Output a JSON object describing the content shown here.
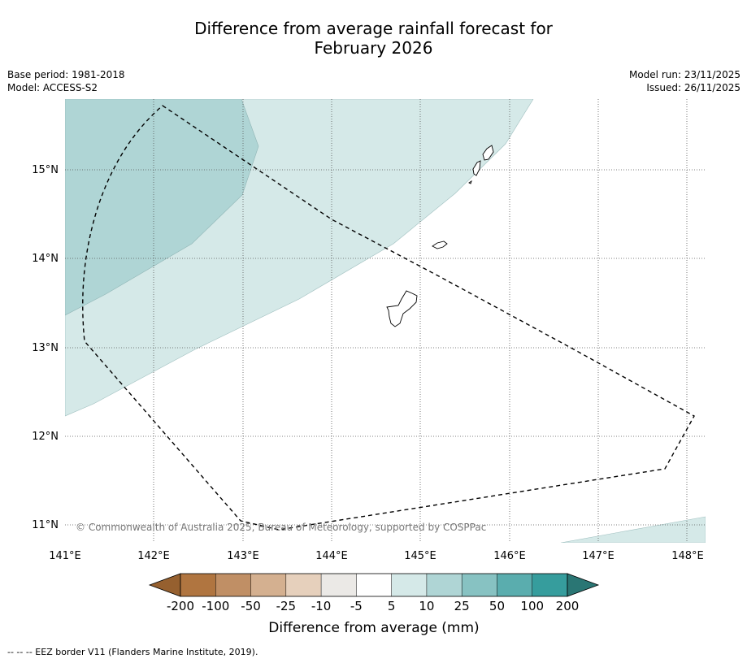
{
  "title": {
    "line1": "Difference from average rainfall forecast for",
    "line2": "February 2026"
  },
  "meta": {
    "base_period": "Base period: 1981-2018",
    "model": "Model: ACCESS-S2",
    "model_run": "Model run: 23/11/2025",
    "issued": "Issued: 26/11/2025"
  },
  "map": {
    "lat_ticks": [
      {
        "value": 15,
        "label": "15°N"
      },
      {
        "value": 14,
        "label": "14°N"
      },
      {
        "value": 13,
        "label": "13°N"
      },
      {
        "value": 12,
        "label": "12°N"
      },
      {
        "value": 11,
        "label": "11°N"
      }
    ],
    "lon_ticks": [
      {
        "value": 141,
        "label": "141°E"
      },
      {
        "value": 142,
        "label": "142°E"
      },
      {
        "value": 143,
        "label": "143°E"
      },
      {
        "value": 144,
        "label": "144°E"
      },
      {
        "value": 145,
        "label": "145°E"
      },
      {
        "value": 146,
        "label": "146°E"
      },
      {
        "value": 147,
        "label": "147°E"
      },
      {
        "value": 148,
        "label": "148°E"
      }
    ],
    "copyright": "© Commonwealth of Australia 2025, Bureau of Meteorology, supported by COSPPac"
  },
  "colorbar": {
    "boundaries": [
      "-200",
      "-100",
      "-50",
      "-25",
      "-10",
      "-5",
      "5",
      "10",
      "25",
      "50",
      "100",
      "200"
    ],
    "colors": [
      "#96602f",
      "#b07540",
      "#c08f65",
      "#d4b090",
      "#e6d0bc",
      "#ebe9e6",
      "#ffffff",
      "#d5e9e8",
      "#afd5d5",
      "#87c2c2",
      "#5aadae",
      "#369d9d",
      "#2a7674"
    ],
    "label": "Difference from average (mm)"
  },
  "footnote": "--  --  -- EEZ border V11 (Flanders Marine Institute, 2019)."
}
